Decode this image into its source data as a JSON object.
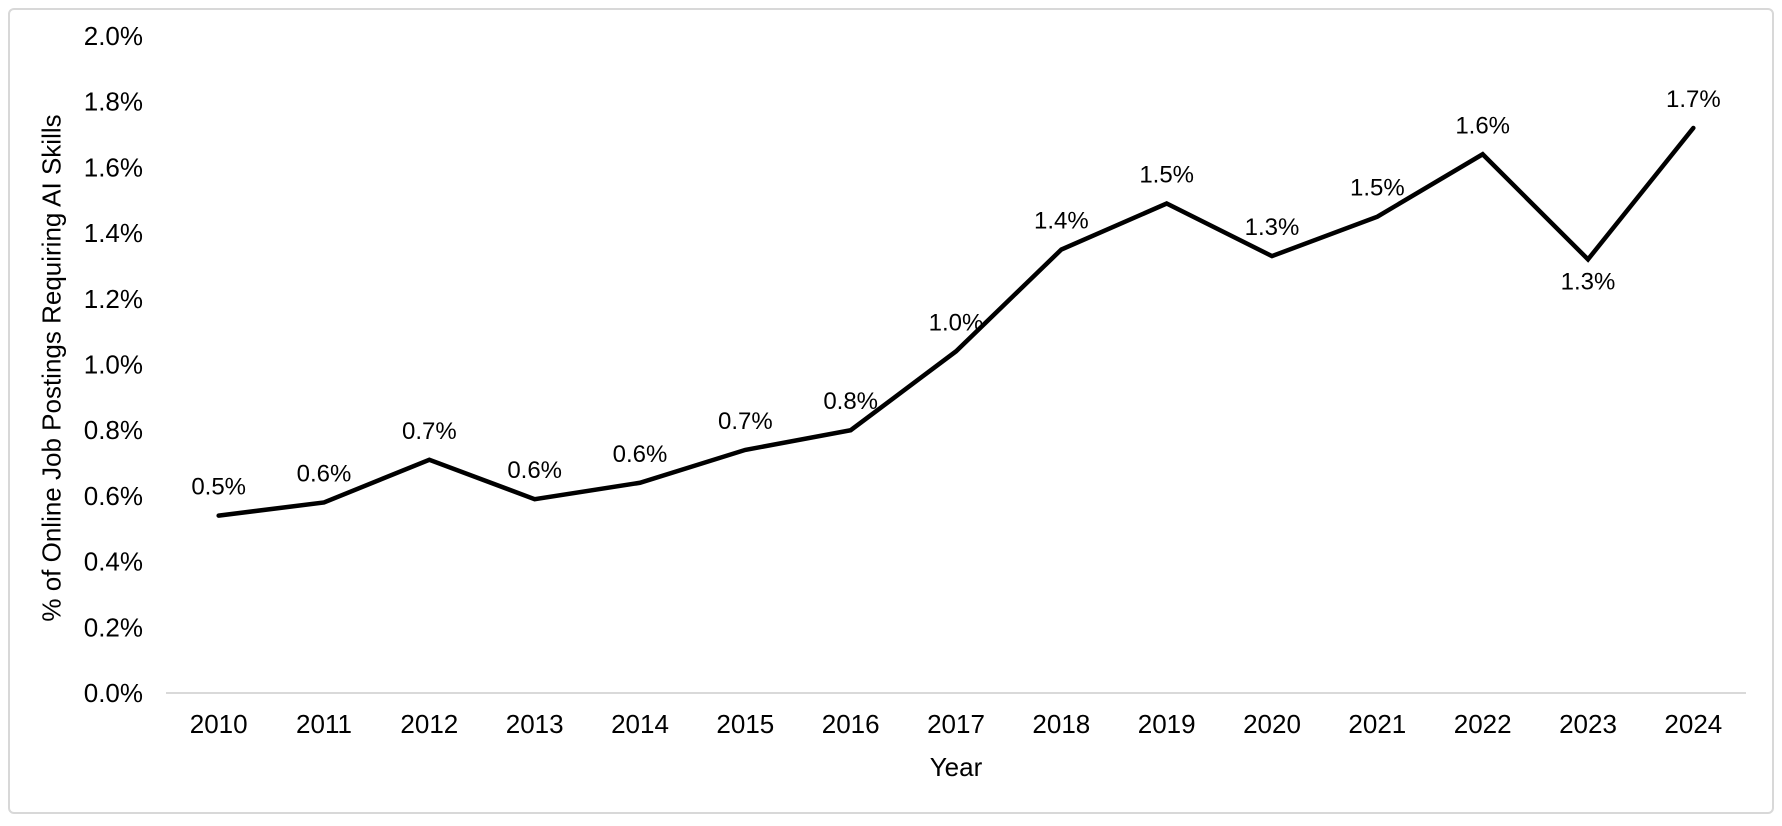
{
  "frame": {
    "border_color": "#d8d8d8",
    "background": "#ffffff"
  },
  "chart_data": {
    "type": "line",
    "title": "",
    "xlabel": "Year",
    "ylabel": "% of Online Job Postings Requiring AI Skills",
    "categories": [
      "2010",
      "2011",
      "2012",
      "2013",
      "2014",
      "2015",
      "2016",
      "2017",
      "2018",
      "2019",
      "2020",
      "2021",
      "2022",
      "2023",
      "2024"
    ],
    "values": [
      0.54,
      0.58,
      0.71,
      0.59,
      0.64,
      0.74,
      0.8,
      1.04,
      1.35,
      1.49,
      1.33,
      1.45,
      1.64,
      1.32,
      1.72
    ],
    "point_labels": [
      "0.5%",
      "0.6%",
      "0.7%",
      "0.6%",
      "0.6%",
      "0.7%",
      "0.8%",
      "1.0%",
      "1.4%",
      "1.5%",
      "1.3%",
      "1.5%",
      "1.6%",
      "1.3%",
      "1.7%"
    ],
    "label_positions": [
      "above",
      "above",
      "above",
      "above",
      "above",
      "above",
      "above",
      "above",
      "above",
      "above",
      "above",
      "above",
      "above",
      "below",
      "above"
    ],
    "ylim": [
      0.0,
      2.0
    ],
    "ytick_step": 0.2,
    "ytick_labels": [
      "0.0%",
      "0.2%",
      "0.4%",
      "0.6%",
      "0.8%",
      "1.0%",
      "1.2%",
      "1.4%",
      "1.6%",
      "1.8%",
      "2.0%"
    ],
    "grid": false,
    "legend": "none",
    "line_color": "#000000",
    "axis_line_color": "#d9d9d9",
    "text_color": "#000000"
  }
}
